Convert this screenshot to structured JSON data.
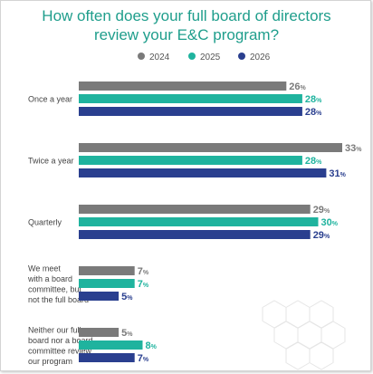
{
  "chart_data": {
    "type": "bar",
    "orientation": "horizontal",
    "title_lines": [
      "How often does your full board of directors",
      "review your E&C program?"
    ],
    "legend_position": "top",
    "value_suffix": "%",
    "categories": [
      {
        "label_lines": [
          "Once a year"
        ]
      },
      {
        "label_lines": [
          "Twice a year"
        ]
      },
      {
        "label_lines": [
          "Quarterly"
        ]
      },
      {
        "label_lines": [
          "We meet",
          "with a board",
          "committee, but",
          "not the full board"
        ]
      },
      {
        "label_lines": [
          "Neither our full",
          "board nor a board",
          "committee review",
          "our program"
        ]
      }
    ],
    "series": [
      {
        "name": "2024",
        "color": "#7a7a7a",
        "values": [
          26,
          33,
          29,
          7,
          5
        ]
      },
      {
        "name": "2025",
        "color": "#1fb39e",
        "values": [
          28,
          28,
          30,
          7,
          8
        ]
      },
      {
        "name": "2026",
        "color": "#2a3f8f",
        "values": [
          28,
          31,
          29,
          5,
          7
        ]
      }
    ],
    "xlim": [
      0,
      33
    ]
  }
}
